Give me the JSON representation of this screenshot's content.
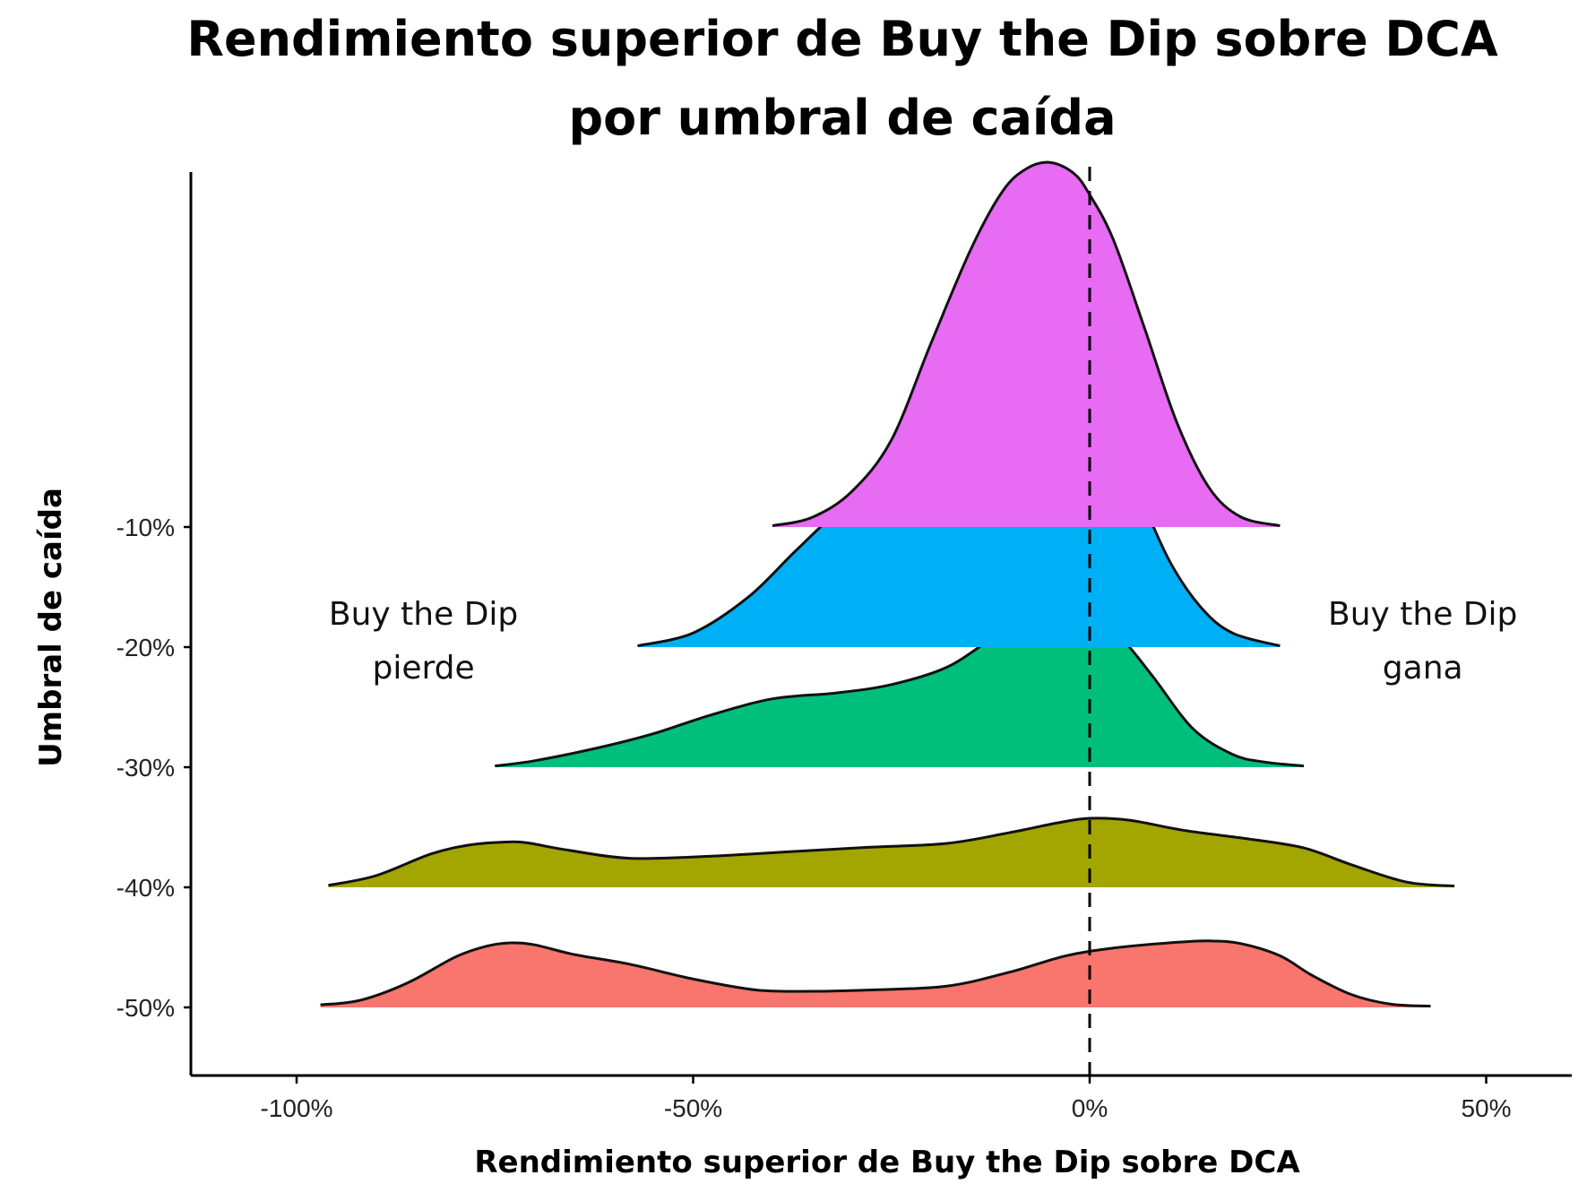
{
  "chart_data": {
    "type": "ridgeline",
    "title_lines": [
      "Rendimiento superior de Buy the Dip sobre DCA",
      "por umbral de caída"
    ],
    "xlabel": "Rendimiento superior de Buy the Dip sobre DCA",
    "ylabel": "Umbral de caída",
    "xlim": [
      -113,
      60
    ],
    "x_ticks": [
      -100,
      -50,
      0,
      50
    ],
    "x_tick_labels": [
      "-100%",
      "-50%",
      "0%",
      "50%"
    ],
    "grid": false,
    "reference_line": {
      "x": 0,
      "style": "dashed"
    },
    "annotations": [
      {
        "lines": [
          "Buy the Dip",
          "pierde"
        ],
        "x": -84
      },
      {
        "lines": [
          "Buy the Dip",
          "gana"
        ],
        "x": 42
      }
    ],
    "series": [
      {
        "name": "-50%",
        "color": "#F8766D",
        "x": [
          -97,
          -92,
          -86,
          -80,
          -76,
          -73,
          -70,
          -65,
          -58,
          -50,
          -42,
          -35,
          -28,
          -18,
          -10,
          -3,
          3,
          10,
          15,
          19,
          24,
          28,
          33,
          38,
          43
        ],
        "y": [
          0.04,
          0.11,
          0.38,
          0.78,
          0.95,
          1.0,
          0.97,
          0.82,
          0.67,
          0.44,
          0.27,
          0.25,
          0.27,
          0.33,
          0.55,
          0.8,
          0.92,
          1.0,
          1.03,
          0.99,
          0.8,
          0.5,
          0.2,
          0.05,
          0.02
        ]
      },
      {
        "name": "-40%",
        "color": "#A3A500",
        "x": [
          -96,
          -90,
          -83,
          -78,
          -74,
          -71,
          -66,
          -58,
          -48,
          -38,
          -28,
          -18,
          -10,
          -4,
          0,
          5,
          12,
          20,
          27,
          33,
          40,
          46
        ],
        "y": [
          0.03,
          0.18,
          0.52,
          0.66,
          0.7,
          0.69,
          0.58,
          0.45,
          0.48,
          0.55,
          0.62,
          0.68,
          0.85,
          1.0,
          1.07,
          1.04,
          0.88,
          0.75,
          0.61,
          0.35,
          0.08,
          0.02
        ]
      },
      {
        "name": "-30%",
        "color": "#00BF7D",
        "x": [
          -75,
          -70,
          -62,
          -55,
          -48,
          -40,
          -32,
          -25,
          -18,
          -12,
          -7,
          -3,
          0,
          4,
          8,
          13,
          18,
          22,
          27
        ],
        "y": [
          0.02,
          0.1,
          0.3,
          0.52,
          0.8,
          1.06,
          1.15,
          1.28,
          1.55,
          2.02,
          2.36,
          2.45,
          2.38,
          2.0,
          1.4,
          0.6,
          0.2,
          0.08,
          0.02
        ]
      },
      {
        "name": "-20%",
        "color": "#00B0F6",
        "x": [
          -57,
          -50,
          -43,
          -37,
          -31,
          -25,
          -20,
          -15,
          -10,
          -6,
          -3,
          0,
          3,
          6,
          10,
          14,
          18,
          24
        ],
        "y": [
          0.02,
          0.22,
          0.78,
          1.5,
          2.18,
          2.62,
          2.92,
          3.28,
          3.72,
          4.02,
          4.08,
          3.9,
          3.3,
          2.45,
          1.35,
          0.62,
          0.22,
          0.02
        ]
      },
      {
        "name": "-10%",
        "color": "#E76BF3",
        "x": [
          -40,
          -35,
          -30,
          -25,
          -20,
          -15,
          -11,
          -8,
          -5,
          -2,
          0,
          3,
          7,
          11,
          15,
          19,
          24
        ],
        "y": [
          0.02,
          0.15,
          0.55,
          1.35,
          2.85,
          4.3,
          5.2,
          5.55,
          5.65,
          5.48,
          5.15,
          4.45,
          3.05,
          1.62,
          0.62,
          0.16,
          0.02
        ]
      }
    ]
  }
}
